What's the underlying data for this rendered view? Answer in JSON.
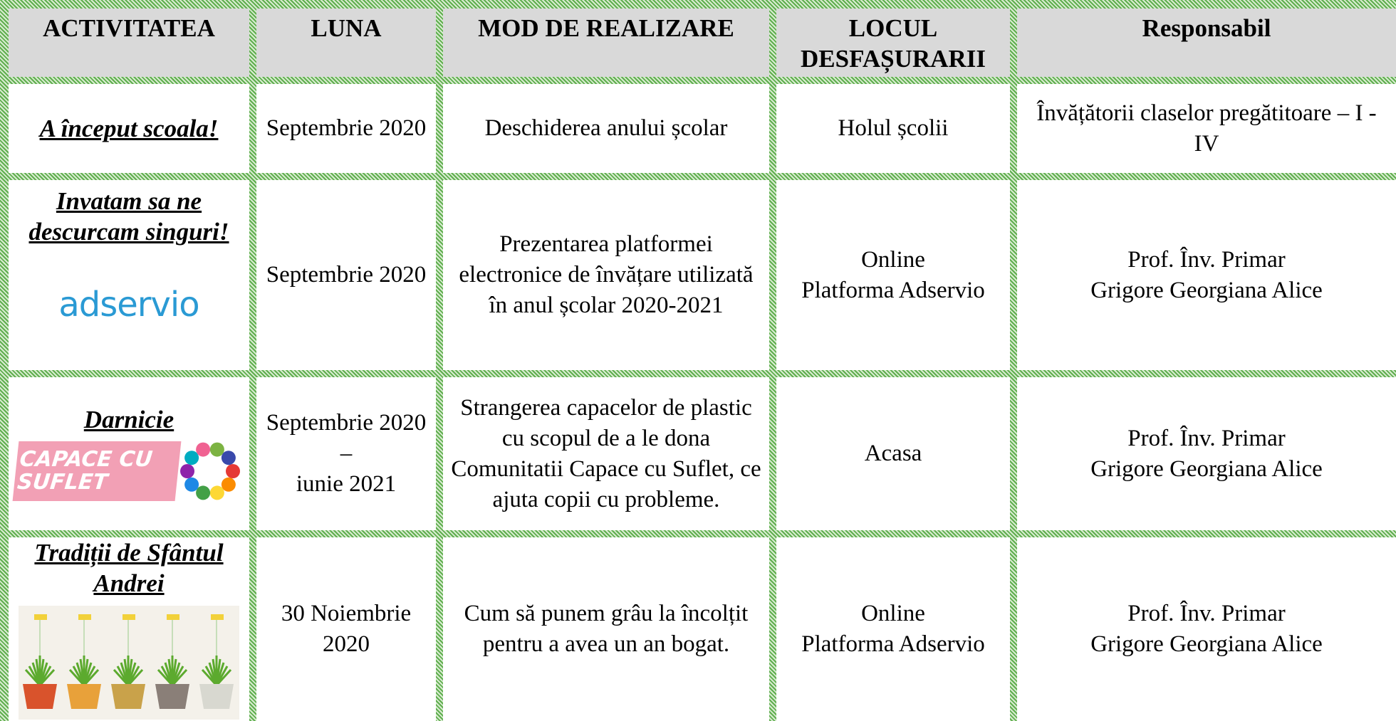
{
  "table": {
    "headers": [
      "ACTIVITATEA",
      "LUNA",
      "MOD DE REALIZARE",
      "LOCUL DESFAȘURARII",
      "Responsabil"
    ],
    "rows": [
      {
        "activity": "A început scoala!",
        "month": "Septembrie 2020",
        "mode": "Deschiderea anului școlar",
        "place": "Holul școlii",
        "responsible": "Învățătorii claselor pregătitoare – I -IV"
      },
      {
        "activity": "Invatam sa ne descurcam singuri!",
        "logo": "adservio",
        "month": "Septembrie 2020",
        "mode": "Prezentarea platformei electronice de învățare utilizată în anul școlar 2020-2021",
        "place": "Online\nPlatforma Adservio",
        "responsible": "Prof. Înv. Primar\nGrigore  Georgiana Alice"
      },
      {
        "activity": "Darnicie",
        "logo": "CAPACE CU SUFLET",
        "month": "Septembrie 2020\n–\niunie 2021",
        "mode": "Strangerea capacelor de plastic cu scopul de a le dona Comunitatii Capace cu Suflet, ce ajuta copii cu probleme.",
        "place": "Acasa",
        "responsible": "Prof. Înv. Primar\nGrigore  Georgiana Alice"
      },
      {
        "activity": "Tradiții de Sfântul Andrei",
        "month": "30  Noiembrie 2020",
        "mode": "Cum să punem grâu la încolțit pentru a avea un an bogat.",
        "place": "Online\nPlatforma Adservio",
        "responsible": "Prof. Înv. Primar\nGrigore  Georgiana Alice"
      }
    ]
  }
}
